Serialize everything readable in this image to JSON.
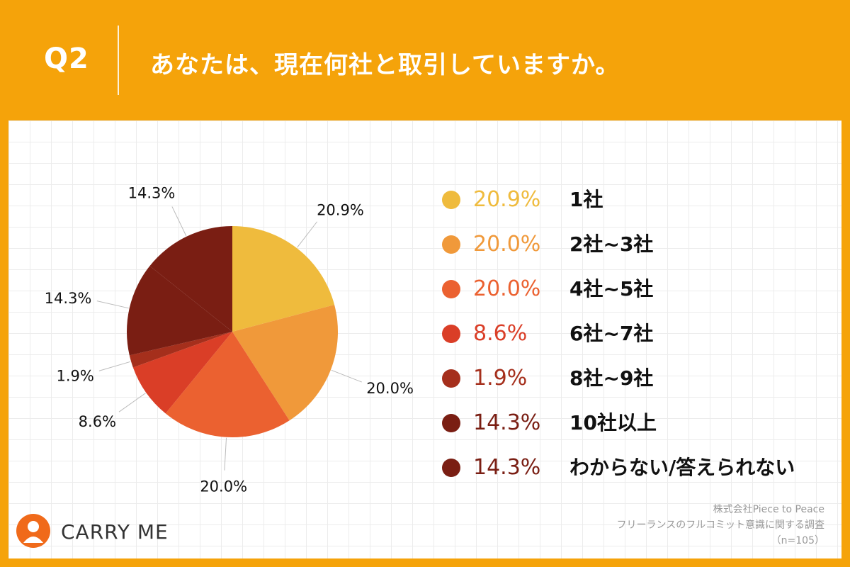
{
  "header": {
    "q_label": "Q2",
    "question": "あなたは、現在何社と取引していますか。"
  },
  "colors": {
    "background": "#F5A30A",
    "slices": [
      "#EFBB3D",
      "#F0993A",
      "#EB6130",
      "#DA3E27",
      "#A52F1C",
      "#7A1E13",
      "#7A1E13"
    ]
  },
  "chart_data": {
    "type": "pie",
    "categories": [
      "1社",
      "2社~3社",
      "4社~5社",
      "6社~7社",
      "8社~9社",
      "10社以上",
      "わからない/答えられない"
    ],
    "values": [
      20.9,
      20.0,
      20.0,
      8.6,
      1.9,
      14.3,
      14.3
    ],
    "labels": [
      "20.9%",
      "20.0%",
      "20.0%",
      "8.6%",
      "1.9%",
      "14.3%",
      "14.3%"
    ],
    "legend_placement": "right"
  },
  "source": {
    "line1": "株式会社Piece to Peace",
    "line2": "フリーランスのフルコミット意識に関する調査",
    "line3": "（n=105）"
  },
  "logo": {
    "text": "CARRY ME",
    "icon": "person-circle-icon"
  }
}
